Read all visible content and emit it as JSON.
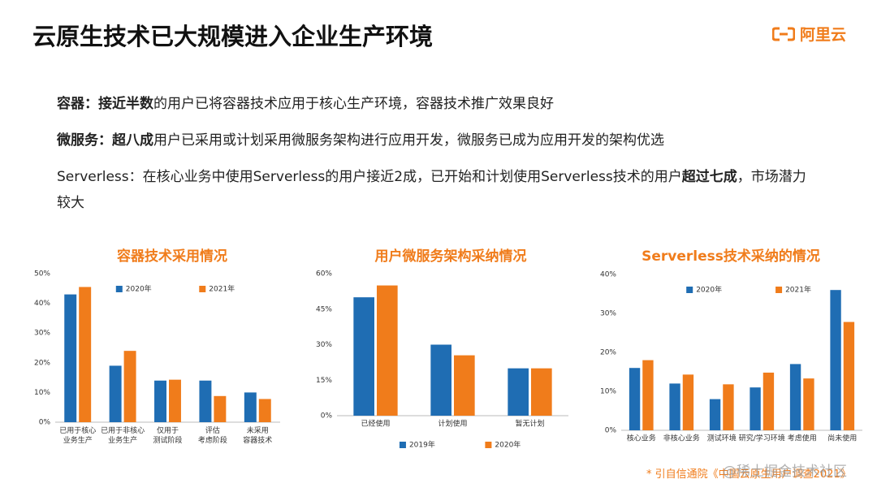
{
  "header": {
    "title": "云原生技术已大规模进入企业生产环境",
    "logo": "阿里云"
  },
  "paragraphs": [
    [
      {
        "text": "容器：接近半数",
        "bold": true
      },
      {
        "text": "的用户已将容器技术应用于核心生产环境，容器技术推广效果良好",
        "bold": false
      }
    ],
    [
      {
        "text": "微服务：超八成",
        "bold": true
      },
      {
        "text": "用户已采用或计划采用微服务架构进行应用开发，微服务已成为应用开发的架构优选",
        "bold": false
      }
    ],
    [
      {
        "text": "Serverless：在核心业务中使用Serverless的用户接近2成，已开始和计划使用Serverless技术的用户",
        "bold": false
      },
      {
        "text": "超过七成",
        "bold": true
      },
      {
        "text": "，市场潜力较大",
        "bold": false
      }
    ]
  ],
  "chart_data": [
    {
      "type": "bar",
      "title": "容器技术采用情况",
      "legend": "top",
      "categories": [
        "已用于核心\n业务生产",
        "已用于非核心\n业务生产",
        "仅用于\n测试阶段",
        "评估\n考虑阶段",
        "未采用\n容器技术"
      ],
      "series": [
        {
          "name": "2020年",
          "color": "#1f6db3",
          "values": [
            43,
            19,
            14,
            14,
            10
          ]
        },
        {
          "name": "2021年",
          "color": "#f07c1b",
          "values": [
            45.5,
            24,
            14.3,
            8.8,
            7.8
          ]
        }
      ],
      "ylim": [
        0,
        50
      ],
      "yticks": [
        {
          "value": 0,
          "label": "0%"
        },
        {
          "value": 10,
          "label": "10%"
        },
        {
          "value": 20,
          "label": "20%"
        },
        {
          "value": 30,
          "label": "30%"
        },
        {
          "value": 40,
          "label": "40%"
        },
        {
          "value": 50,
          "label": "50%"
        }
      ]
    },
    {
      "type": "bar",
      "title": "用户微服务架构采纳情况",
      "legend": "bottom",
      "categories": [
        "已经使用",
        "计划使用",
        "暂无计划"
      ],
      "series": [
        {
          "name": "2019年",
          "color": "#1f6db3",
          "values": [
            50,
            30,
            20
          ]
        },
        {
          "name": "2020年",
          "color": "#f07c1b",
          "values": [
            55,
            25.5,
            20
          ]
        }
      ],
      "ylim": [
        0,
        60
      ],
      "yticks": [
        {
          "value": 0,
          "label": "0%"
        },
        {
          "value": 15,
          "label": "15%"
        },
        {
          "value": 30,
          "label": "30%"
        },
        {
          "value": 45,
          "label": "45%"
        },
        {
          "value": 60,
          "label": "60%"
        }
      ]
    },
    {
      "type": "bar",
      "title": "Serverless技术采纳的情况",
      "legend": "top",
      "categories": [
        "核心业务",
        "非核心业务",
        "测试环境",
        "研究/学习环境",
        "考虑使用",
        "尚未使用"
      ],
      "series": [
        {
          "name": "2020年",
          "color": "#1f6db3",
          "values": [
            16,
            12,
            8,
            11,
            17,
            36
          ]
        },
        {
          "name": "2021年",
          "color": "#f07c1b",
          "values": [
            18,
            14.3,
            11.8,
            14.8,
            13.3,
            27.8
          ]
        }
      ],
      "ylim": [
        0,
        40
      ],
      "yticks": [
        {
          "value": 0,
          "label": "0%"
        },
        {
          "value": 10,
          "label": "10%"
        },
        {
          "value": 20,
          "label": "20%"
        },
        {
          "value": 30,
          "label": "30%"
        },
        {
          "value": 40,
          "label": "40%"
        }
      ]
    }
  ],
  "footer": {
    "source": "* 引自信通院《中国云原生用户调查2021》",
    "watermark": "@稀土掘金技术社区"
  }
}
